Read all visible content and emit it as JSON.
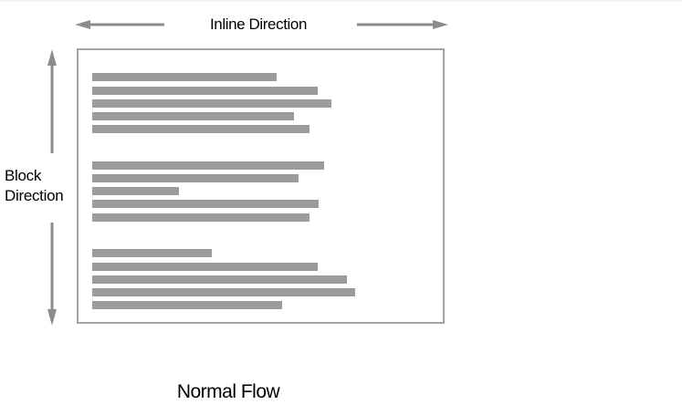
{
  "diagram": {
    "inline_label": "Inline Direction",
    "block_label_line1": "Block",
    "block_label_line2": "Direction",
    "caption": "Normal Flow",
    "colors": {
      "arrow": "#8c8c8c",
      "bar": "#9b9b9b",
      "box_border": "#a3a3a3",
      "text": "#000000"
    },
    "paragraphs": [
      {
        "lines": 5
      },
      {
        "lines": 5
      },
      {
        "lines": 5
      }
    ]
  }
}
